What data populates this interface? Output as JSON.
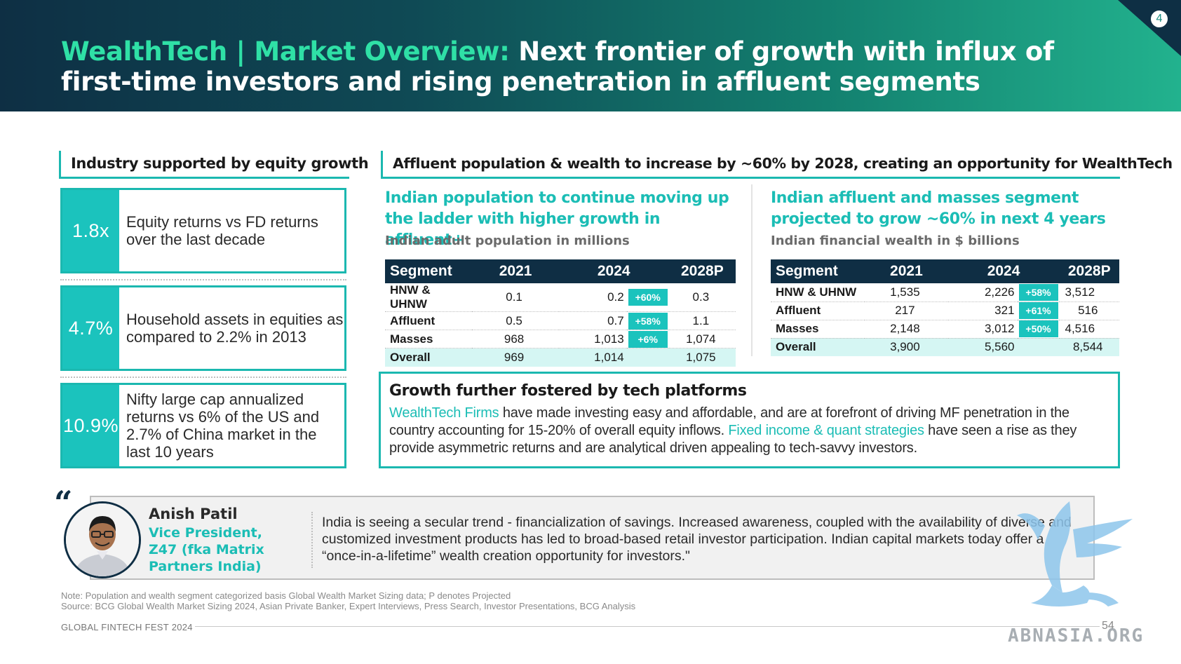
{
  "header": {
    "title_accent": "WealthTech | Market Overview:",
    "title_main": " Next frontier of growth with influx of first-time investors and rising penetration in affluent segments",
    "badge": "4"
  },
  "left": {
    "heading": "Industry supported by equity growth",
    "stats": [
      {
        "value": "1.8x",
        "text": "Equity returns vs FD returns over the last decade"
      },
      {
        "value": "4.7%",
        "text": "Household assets in equities as compared to 2.2% in 2013"
      },
      {
        "value": "10.9%",
        "text": "Nifty large cap annualized returns vs 6% of the US and 2.7% of China market in the last 10 years"
      }
    ]
  },
  "right": {
    "heading": "Affluent population & wealth to increase by ~60% by 2028, creating an opportunity for WealthTech",
    "population": {
      "title": "Indian population to continue moving up the ladder with higher growth in affluent+",
      "subtitle": "Indian adult population in millions",
      "headers": [
        "Segment",
        "2021",
        "2024",
        "2028P"
      ],
      "rows": [
        {
          "segment": "HNW & UHNW",
          "y2021": "0.1",
          "y2024": "0.2",
          "growth": "+60%",
          "y2028": "0.3"
        },
        {
          "segment": "Affluent",
          "y2021": "0.5",
          "y2024": "0.7",
          "growth": "+58%",
          "y2028": "1.1"
        },
        {
          "segment": "Masses",
          "y2021": "968",
          "y2024": "1,013",
          "growth": "+6%",
          "y2028": "1,074"
        }
      ],
      "total": {
        "segment": "Overall",
        "y2021": "969",
        "y2024": "1,014",
        "y2028": "1,075"
      }
    },
    "wealth": {
      "title": "Indian affluent and masses segment projected to grow ~60% in next 4 years",
      "subtitle": "Indian financial wealth in $ billions",
      "headers": [
        "Segment",
        "2021",
        "2024",
        "2028P"
      ],
      "rows": [
        {
          "segment": "HNW & UHNW",
          "y2021": "1,535",
          "y2024": "2,226",
          "growth": "+58%",
          "y2028": "3,512"
        },
        {
          "segment": "Affluent",
          "y2021": "217",
          "y2024": "321",
          "growth": "+61%",
          "y2028": "516"
        },
        {
          "segment": "Masses",
          "y2021": "2,148",
          "y2024": "3,012",
          "growth": "+50%",
          "y2028": "4,516"
        }
      ],
      "total": {
        "segment": "Overall",
        "y2021": "3,900",
        "y2024": "5,560",
        "y2028": "8,544"
      }
    },
    "growth_box": {
      "title": "Growth further fostered by tech platforms",
      "hl1": "WealthTech Firms",
      "text1": " have made investing easy and affordable, and are at forefront of driving MF penetration in the country accounting for 15-20% of overall equity inflows. ",
      "hl2": "Fixed income & quant strategies",
      "text2": " have seen a rise as they provide asymmetric returns and are analytical driven appealing to tech-savvy investors."
    }
  },
  "quote": {
    "mark": "“",
    "name": "Anish Patil",
    "role": "Vice President, Z47 (fka Matrix Partners India)",
    "text": "India is seeing a secular trend - financialization of savings. Increased awareness, coupled with the availability of diverse and customized investment products has led to broad-based retail investor participation. Indian capital markets today offer a “once-in-a-lifetime” wealth creation opportunity for investors.\""
  },
  "footer": {
    "note": "Note: Population and wealth segment categorized basis Global Wealth Market Sizing data; P denotes Projected",
    "source": "Source: BCG Global Wealth Market Sizing 2024, Asian Private Banker, Expert Interviews, Press Search, Investor Presentations, BCG Analysis",
    "label": "GLOBAL FINTECH FEST 2024",
    "page": "54",
    "watermark": "ABNASIA.ORG"
  },
  "colors": {
    "accent_teal": "#1bbdb5",
    "title_green": "#2fe0a6",
    "navy": "#0f2e44"
  }
}
